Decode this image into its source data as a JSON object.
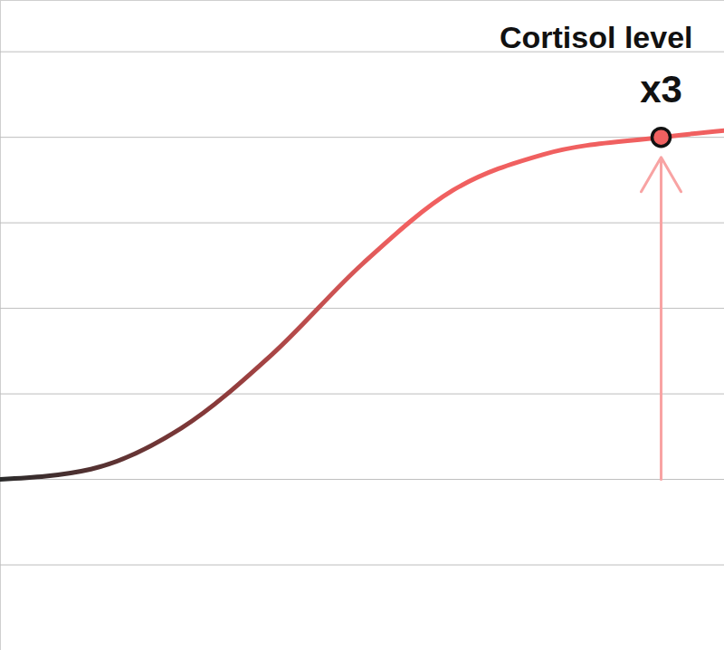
{
  "chart_data": {
    "type": "line",
    "title": "Cortisol level",
    "x": [
      0,
      12.5,
      25,
      37.5,
      50,
      62.5,
      75,
      91.25,
      100
    ],
    "series": [
      {
        "name": "Cortisol level",
        "color": "#f06060",
        "values": [
          1.0,
          1.06,
          1.3,
          1.73,
          2.26,
          2.69,
          2.9,
          3.0,
          3.04
        ]
      }
    ],
    "xlim": [
      0,
      100
    ],
    "ylim": [
      0,
      3.8
    ],
    "yticks": [
      0.5,
      1,
      1.5,
      2,
      2.5,
      3,
      3.5
    ],
    "grid": true,
    "tick_labels": false,
    "annotations": [
      {
        "text": "x3",
        "x": 91.25,
        "y": 3,
        "arrow_from": 1
      }
    ]
  }
}
